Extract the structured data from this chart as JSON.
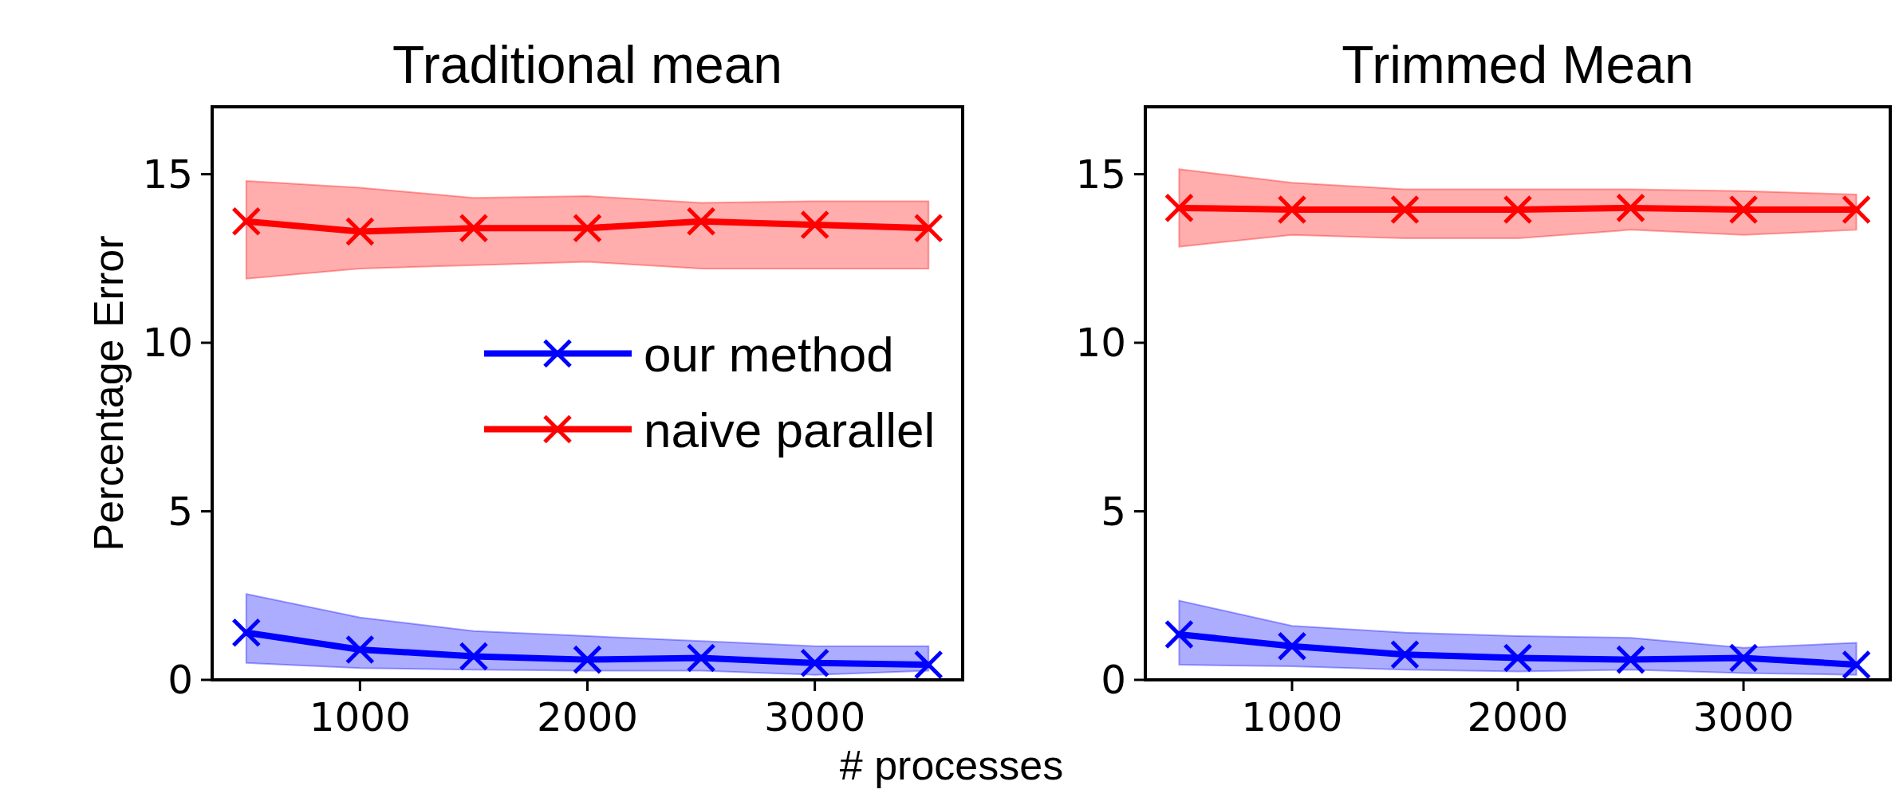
{
  "chart_data": [
    {
      "type": "line",
      "title": "Traditional mean",
      "xlabel": "# processes",
      "ylabel": "Percentage Error",
      "x": [
        500,
        1000,
        1500,
        2000,
        2500,
        3000,
        3500
      ],
      "xlim": [
        350,
        3650
      ],
      "xticks": [
        1000,
        2000,
        3000
      ],
      "ylim": [
        0,
        17
      ],
      "yticks": [
        0,
        5,
        10,
        15
      ],
      "marker": "cross",
      "legend": "center right",
      "grid": false,
      "series": [
        {
          "name": "our method",
          "color": "#0000ff",
          "values": [
            1.4,
            0.9,
            0.7,
            0.6,
            0.65,
            0.5,
            0.45
          ],
          "lower": [
            0.5,
            0.35,
            0.3,
            0.27,
            0.27,
            0.15,
            0.27
          ],
          "upper": [
            2.55,
            1.85,
            1.45,
            1.3,
            1.15,
            1.0,
            1.0
          ]
        },
        {
          "name": "naive parallel",
          "color": "#ff0000",
          "values": [
            13.6,
            13.3,
            13.4,
            13.4,
            13.6,
            13.5,
            13.4
          ],
          "lower": [
            11.9,
            12.2,
            12.3,
            12.4,
            12.2,
            12.2,
            12.2
          ],
          "upper": [
            14.8,
            14.6,
            14.3,
            14.35,
            14.15,
            14.2,
            14.2
          ]
        }
      ]
    },
    {
      "type": "line",
      "title": "Trimmed Mean",
      "x": [
        500,
        1000,
        1500,
        2000,
        2500,
        3000,
        3500
      ],
      "xlim": [
        350,
        3650
      ],
      "xticks": [
        1000,
        2000,
        3000
      ],
      "ylim": [
        0,
        17
      ],
      "yticks": [
        0,
        5,
        10,
        15
      ],
      "marker": "cross",
      "grid": false,
      "series": [
        {
          "color": "#0000ff",
          "values": [
            1.35,
            1.0,
            0.75,
            0.65,
            0.6,
            0.65,
            0.45
          ],
          "lower": [
            0.45,
            0.4,
            0.3,
            0.25,
            0.3,
            0.2,
            0.15
          ],
          "upper": [
            2.35,
            1.6,
            1.4,
            1.3,
            1.25,
            0.95,
            1.1
          ]
        },
        {
          "color": "#ff0000",
          "values": [
            14.0,
            13.95,
            13.95,
            13.95,
            14.0,
            13.95,
            13.95
          ],
          "lower": [
            12.85,
            13.2,
            13.1,
            13.1,
            13.35,
            13.2,
            13.35
          ],
          "upper": [
            15.15,
            14.75,
            14.55,
            14.55,
            14.55,
            14.5,
            14.4
          ]
        }
      ]
    }
  ]
}
